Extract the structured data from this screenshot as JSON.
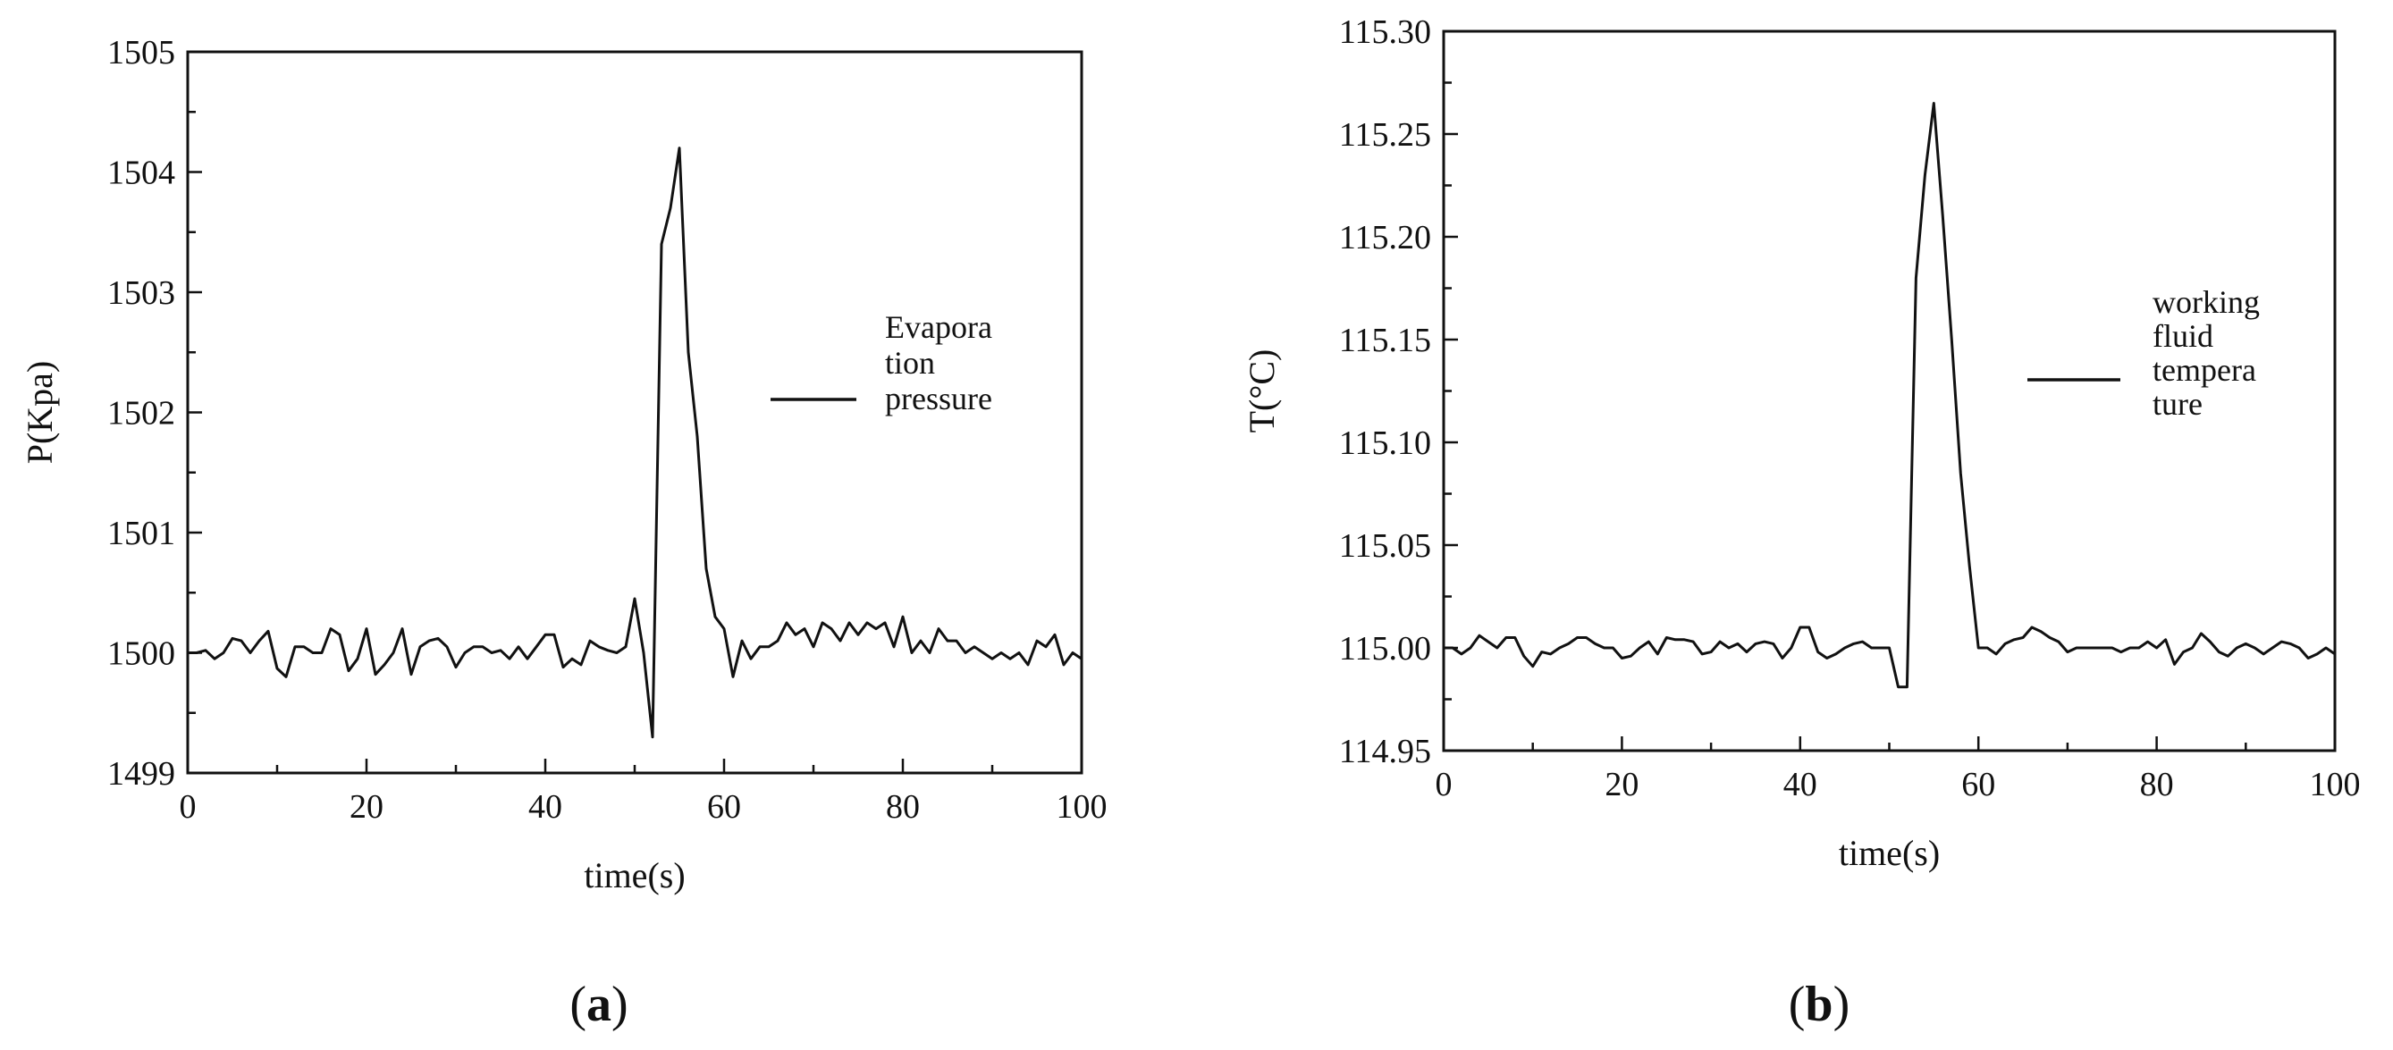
{
  "chart_data": [
    {
      "type": "line",
      "panel_label": "(a)",
      "panel_letter": "a",
      "xlabel": "time(s)",
      "ylabel": "P(Kpa)",
      "xlim": [
        0,
        100
      ],
      "ylim": [
        1499,
        1505
      ],
      "xticks": [
        0,
        20,
        40,
        60,
        80,
        100
      ],
      "yticks": [
        1499,
        1500,
        1501,
        1502,
        1503,
        1504,
        1505
      ],
      "ytick_labels": [
        "1499",
        "1500",
        "1501",
        "1502",
        "1503",
        "1504",
        "1505"
      ],
      "grid": false,
      "legend_position": "right-middle",
      "legend_lines": [
        "Evapora",
        "tion",
        "pressure"
      ],
      "series": [
        {
          "name": "Evaporation pressure",
          "color": "#111111",
          "x": [
            0,
            1,
            2,
            3,
            4,
            5,
            6,
            7,
            8,
            9,
            10,
            11,
            12,
            13,
            14,
            15,
            16,
            17,
            18,
            19,
            20,
            21,
            22,
            23,
            24,
            25,
            26,
            27,
            28,
            29,
            30,
            31,
            32,
            33,
            34,
            35,
            36,
            37,
            38,
            39,
            40,
            41,
            42,
            43,
            44,
            45,
            46,
            47,
            48,
            49,
            50,
            51,
            52,
            53,
            54,
            55,
            56,
            57,
            58,
            59,
            60,
            61,
            62,
            63,
            64,
            65,
            66,
            67,
            68,
            69,
            70,
            71,
            72,
            73,
            74,
            75,
            76,
            77,
            78,
            79,
            80,
            81,
            82,
            83,
            84,
            85,
            86,
            87,
            88,
            89,
            90,
            91,
            92,
            93,
            94,
            95,
            96,
            97,
            98,
            99,
            100
          ],
          "y": [
            1500.0,
            1500.0,
            1500.02,
            1499.95,
            1500.0,
            1500.12,
            1500.1,
            1500.0,
            1500.1,
            1500.18,
            1499.87,
            1499.8,
            1500.05,
            1500.05,
            1500.0,
            1500.0,
            1500.2,
            1500.15,
            1499.85,
            1499.95,
            1500.2,
            1499.82,
            1499.9,
            1500.0,
            1500.2,
            1499.82,
            1500.05,
            1500.1,
            1500.12,
            1500.05,
            1499.88,
            1500.0,
            1500.05,
            1500.05,
            1500.0,
            1500.02,
            1499.95,
            1500.05,
            1499.95,
            1500.05,
            1500.15,
            1500.15,
            1499.88,
            1499.95,
            1499.9,
            1500.1,
            1500.05,
            1500.02,
            1500.0,
            1500.05,
            1500.45,
            1500.0,
            1499.3,
            1503.4,
            1503.7,
            1504.2,
            1502.5,
            1501.8,
            1500.7,
            1500.3,
            1500.2,
            1499.8,
            1500.1,
            1499.95,
            1500.05,
            1500.05,
            1500.1,
            1500.25,
            1500.15,
            1500.2,
            1500.05,
            1500.25,
            1500.2,
            1500.1,
            1500.25,
            1500.15,
            1500.25,
            1500.2,
            1500.25,
            1500.05,
            1500.3,
            1500.0,
            1500.1,
            1500.0,
            1500.2,
            1500.1,
            1500.1,
            1500.0,
            1500.05,
            1500.0,
            1499.95,
            1500.0,
            1499.95,
            1500.0,
            1499.9,
            1500.1,
            1500.05,
            1500.15,
            1499.9,
            1500.0,
            1499.95
          ]
        }
      ]
    },
    {
      "type": "line",
      "panel_label": "(b)",
      "panel_letter": "b",
      "xlabel": "time(s)",
      "ylabel": "T(°C)",
      "xlim": [
        0,
        100
      ],
      "ylim": [
        114.95,
        115.3
      ],
      "xticks": [
        0,
        20,
        40,
        60,
        80,
        100
      ],
      "yticks": [
        114.95,
        115.0,
        115.05,
        115.1,
        115.15,
        115.2,
        115.25,
        115.3
      ],
      "ytick_labels": [
        "114.95",
        "115.00",
        "115.05",
        "115.10",
        "115.15",
        "115.20",
        "115.25",
        "115.30"
      ],
      "grid": false,
      "legend_position": "right-middle",
      "legend_lines": [
        "working",
        "fluid",
        "tempera",
        "ture"
      ],
      "series": [
        {
          "name": "working fluid temperature",
          "color": "#111111",
          "x": [
            0,
            1,
            2,
            3,
            4,
            5,
            6,
            7,
            8,
            9,
            10,
            11,
            12,
            13,
            14,
            15,
            16,
            17,
            18,
            19,
            20,
            21,
            22,
            23,
            24,
            25,
            26,
            27,
            28,
            29,
            30,
            31,
            32,
            33,
            34,
            35,
            36,
            37,
            38,
            39,
            40,
            41,
            42,
            43,
            44,
            45,
            46,
            47,
            48,
            49,
            50,
            51,
            52,
            53,
            54,
            55,
            56,
            57,
            58,
            59,
            60,
            61,
            62,
            63,
            64,
            65,
            66,
            67,
            68,
            69,
            70,
            71,
            72,
            73,
            74,
            75,
            76,
            77,
            78,
            79,
            80,
            81,
            82,
            83,
            84,
            85,
            86,
            87,
            88,
            89,
            90,
            91,
            92,
            93,
            94,
            95,
            96,
            97,
            98,
            99,
            100
          ],
          "y": [
            115.0,
            115.0,
            114.997,
            115.0,
            115.006,
            115.003,
            115.0,
            115.005,
            115.005,
            114.996,
            114.991,
            114.998,
            114.997,
            115.0,
            115.002,
            115.005,
            115.005,
            115.002,
            115.0,
            115.0,
            114.995,
            114.996,
            115.0,
            115.003,
            114.997,
            115.005,
            115.004,
            115.004,
            115.003,
            114.997,
            114.998,
            115.003,
            115.0,
            115.002,
            114.998,
            115.002,
            115.003,
            115.002,
            114.995,
            115.0,
            115.01,
            115.01,
            114.998,
            114.995,
            114.997,
            115.0,
            115.002,
            115.003,
            115.0,
            115.0,
            115.0,
            114.981,
            114.981,
            115.18,
            115.23,
            115.265,
            115.21,
            115.15,
            115.085,
            115.04,
            115.0,
            115.0,
            114.997,
            115.002,
            115.004,
            115.005,
            115.01,
            115.008,
            115.005,
            115.003,
            114.998,
            115.0,
            115.0,
            115.0,
            115.0,
            115.0,
            114.998,
            115.0,
            115.0,
            115.003,
            115.0,
            115.004,
            114.992,
            114.998,
            115.0,
            115.007,
            115.003,
            114.998,
            114.996,
            115.0,
            115.002,
            115.0,
            114.997,
            115.0,
            115.003,
            115.002,
            115.0,
            114.995,
            114.997,
            115.0,
            114.997
          ]
        }
      ]
    }
  ]
}
